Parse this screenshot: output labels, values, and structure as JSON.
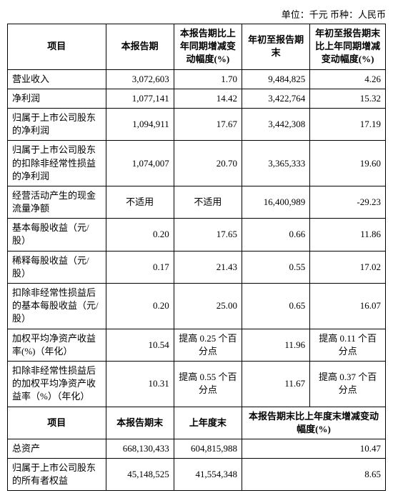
{
  "unit_line": "单位：千元  币种：人民币",
  "headers1": {
    "item": "项目",
    "period": "本报告期",
    "yoy": "本报告期比上年同期增减变动幅度(%)",
    "ytd": "年初至报告期末",
    "ytd_yoy": "年初至报告期末比上年同期增减变动幅度(%)"
  },
  "rows1": [
    {
      "label": "营业收入",
      "c2": "3,072,603",
      "c3": "1.70",
      "c4": "9,484,825",
      "c5": "4.26"
    },
    {
      "label": "净利润",
      "c2": "1,077,141",
      "c3": "14.42",
      "c4": "3,422,764",
      "c5": "15.32"
    },
    {
      "label": "归属于上市公司股东的净利润",
      "c2": "1,094,911",
      "c3": "17.67",
      "c4": "3,442,308",
      "c5": "17.19"
    },
    {
      "label": "归属于上市公司股东的扣除非经常性损益的净利润",
      "c2": "1,074,007",
      "c3": "20.70",
      "c4": "3,365,333",
      "c5": "19.60"
    },
    {
      "label": "经营活动产生的现金流量净额",
      "c2": "不适用",
      "c2_txt": true,
      "c3": "不适用",
      "c3_txt": true,
      "c4": "16,400,989",
      "c5": "-29.23"
    },
    {
      "label": "基本每股收益（元/股）",
      "c2": "0.20",
      "c3": "17.65",
      "c4": "0.66",
      "c5": "11.86"
    },
    {
      "label": "稀释每股收益（元/股）",
      "c2": "0.17",
      "c3": "21.43",
      "c4": "0.55",
      "c5": "17.02"
    },
    {
      "label": "扣除非经常性损益后的基本每股收益（元/股）",
      "c2": "0.20",
      "c3": "25.00",
      "c4": "0.65",
      "c5": "16.07"
    },
    {
      "label": "加权平均净资产收益率(%)（年化）",
      "c2": "10.54",
      "c3": "提高 0.25 个百分点",
      "c3_txt": true,
      "c4": "11.96",
      "c5": "提高 0.11 个百分点",
      "c5_txt": true
    },
    {
      "label": "扣除非经常性损益后的加权平均净资产收益率（%）（年化）",
      "c2": "10.31",
      "c3": "提高 0.55 个百分点",
      "c3_txt": true,
      "c4": "11.67",
      "c5": "提高 0.37 个百分点",
      "c5_txt": true
    }
  ],
  "headers2": {
    "item": "项目",
    "period_end": "本报告期末",
    "last_year_end": "上年度末",
    "change": "本报告期末比上年度末增减变动幅度(%)"
  },
  "rows2": [
    {
      "label": "总资产",
      "c2": "668,130,433",
      "c3": "604,815,988",
      "c4": "10.47"
    },
    {
      "label": "归属于上市公司股东的所有者权益",
      "c2": "45,148,525",
      "c3": "41,554,348",
      "c4": "8.65"
    }
  ]
}
